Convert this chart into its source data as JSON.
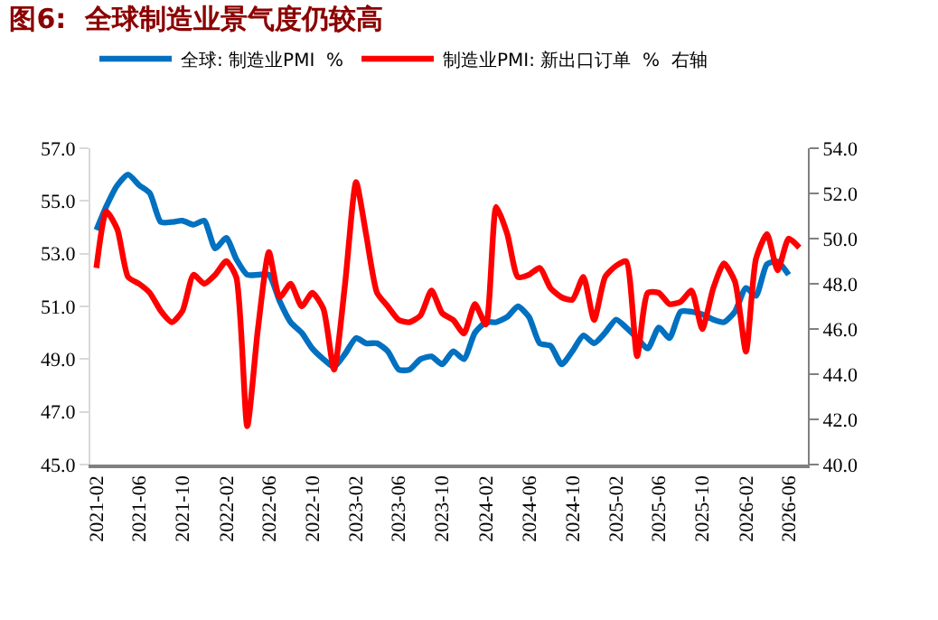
{
  "chart_data": {
    "type": "line",
    "title": "图6:  全球制造业景气度仍较高",
    "x": [
      "2021-02",
      "2021-03",
      "2021-04",
      "2021-05",
      "2021-06",
      "2021-07",
      "2021-08",
      "2021-09",
      "2021-10",
      "2021-11",
      "2021-12",
      "2022-01",
      "2022-02",
      "2022-03",
      "2022-04",
      "2022-05",
      "2022-06",
      "2022-07",
      "2022-08",
      "2022-09",
      "2022-10",
      "2022-11",
      "2022-12",
      "2023-01",
      "2023-02",
      "2023-03",
      "2023-04",
      "2023-05",
      "2023-06",
      "2023-07",
      "2023-08",
      "2023-09",
      "2023-10",
      "2023-11",
      "2023-12",
      "2024-01",
      "2024-02",
      "2024-03",
      "2024-04",
      "2024-05",
      "2024-06",
      "2024-07",
      "2024-08",
      "2024-09",
      "2024-10",
      "2024-11",
      "2024-12",
      "2025-01",
      "2025-02",
      "2025-03",
      "2025-04",
      "2025-05",
      "2025-06",
      "2025-07",
      "2025-08",
      "2025-09",
      "2025-10",
      "2025-11",
      "2025-12",
      "2026-01",
      "2026-02",
      "2026-03",
      "2026-04",
      "2026-05",
      "2026-06",
      "2026-07"
    ],
    "series": [
      {
        "name": "全球: 制造业PMI  %",
        "color": "#0070c0",
        "values": [
          53.9,
          54.8,
          55.6,
          56.0,
          55.6,
          55.3,
          54.2,
          54.2,
          54.25,
          54.1,
          54.25,
          53.2,
          53.6,
          52.8,
          52.2,
          52.2,
          52.2,
          51.2,
          50.4,
          50.0,
          49.4,
          49.0,
          48.7,
          49.2,
          49.8,
          49.6,
          49.6,
          49.3,
          48.6,
          48.6,
          49.0,
          49.1,
          48.8,
          49.3,
          49.0,
          50.0,
          50.4,
          50.4,
          50.6,
          51.0,
          50.6,
          49.6,
          49.5,
          48.8,
          49.3,
          49.9,
          49.6,
          50.0,
          50.5,
          50.2,
          49.8,
          49.4,
          50.2,
          49.8,
          50.8,
          50.8,
          50.7,
          50.5,
          50.4,
          50.8,
          51.7,
          51.4,
          52.6,
          52.7,
          52.2,
          null
        ]
      },
      {
        "name": "制造业PMI: 新出口订单  %  右轴",
        "color": "#ff0000",
        "axis": "y2",
        "values": [
          48.7,
          51.2,
          50.4,
          48.3,
          48.0,
          47.6,
          46.8,
          46.3,
          46.8,
          48.4,
          48.0,
          48.4,
          49.0,
          48.3,
          41.7,
          46.0,
          49.4,
          47.4,
          48.0,
          47.0,
          47.6,
          46.9,
          44.2,
          48.0,
          52.5,
          50.2,
          47.6,
          47.0,
          46.4,
          46.3,
          46.6,
          47.7,
          46.7,
          46.4,
          45.8,
          47.1,
          46.2,
          51.4,
          50.2,
          48.3,
          48.4,
          48.7,
          47.8,
          47.4,
          47.3,
          48.3,
          46.4,
          48.3,
          48.8,
          49.0,
          44.8,
          47.6,
          47.6,
          47.1,
          47.2,
          47.7,
          46.0,
          47.8,
          48.9,
          48.1,
          45.0,
          49.1,
          50.2,
          48.6,
          50.0,
          49.6
        ]
      }
    ],
    "xlim": [
      "2021-01-15",
      "2026-07-25"
    ],
    "xticks": [
      "2021-02",
      "2021-06",
      "2021-10",
      "2022-02",
      "2022-06",
      "2022-10",
      "2023-02",
      "2023-06",
      "2023-10",
      "2024-02",
      "2024-06",
      "2024-10",
      "2025-02",
      "2025-06",
      "2025-10",
      "2026-02",
      "2026-06"
    ],
    "ylim": [
      45,
      57
    ],
    "yticks": [
      {
        "value": 45,
        "label": "45.0"
      },
      {
        "value": 47,
        "label": "47.0"
      },
      {
        "value": 49,
        "label": "49.0"
      },
      {
        "value": 51,
        "label": "51.0"
      },
      {
        "value": 53,
        "label": "53.0"
      },
      {
        "value": 55,
        "label": "55.0"
      },
      {
        "value": 57,
        "label": "57.0"
      }
    ],
    "y2lim": [
      40,
      54
    ],
    "y2ticks": [
      {
        "value": 40,
        "label": "40.0"
      },
      {
        "value": 42,
        "label": "42.0"
      },
      {
        "value": 44,
        "label": "44.0"
      },
      {
        "value": 46,
        "label": "46.0"
      },
      {
        "value": 48,
        "label": "48.0"
      },
      {
        "value": 50,
        "label": "50.0"
      },
      {
        "value": 52,
        "label": "52.0"
      },
      {
        "value": 54,
        "label": "54.0"
      }
    ],
    "legend": "top",
    "marker": "none",
    "line_style": "solid"
  }
}
